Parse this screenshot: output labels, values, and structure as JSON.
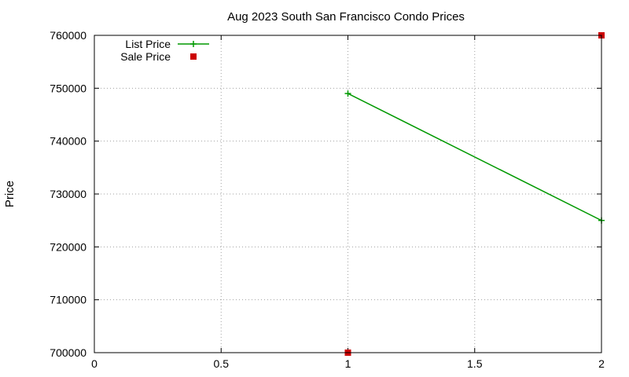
{
  "chart_data": {
    "type": "line",
    "title": "Aug 2023 South San Francisco Condo Prices",
    "xlabel": "",
    "ylabel": "Price",
    "xlim": [
      0,
      2
    ],
    "ylim": [
      700000,
      760000
    ],
    "x_ticks": [
      {
        "value": 0,
        "label": "0"
      },
      {
        "value": 0.5,
        "label": "0.5"
      },
      {
        "value": 1,
        "label": "1"
      },
      {
        "value": 1.5,
        "label": "1.5"
      },
      {
        "value": 2,
        "label": "2"
      }
    ],
    "y_ticks": [
      {
        "value": 700000,
        "label": "700000"
      },
      {
        "value": 710000,
        "label": "710000"
      },
      {
        "value": 720000,
        "label": "720000"
      },
      {
        "value": 730000,
        "label": "730000"
      },
      {
        "value": 740000,
        "label": "740000"
      },
      {
        "value": 750000,
        "label": "750000"
      },
      {
        "value": 760000,
        "label": "760000"
      }
    ],
    "grid": true,
    "legend_position": "top-left",
    "series": [
      {
        "name": "List Price",
        "style": "linespoints",
        "marker": "plus",
        "color": "#009900",
        "points": [
          {
            "x": 1,
            "y": 749000
          },
          {
            "x": 2,
            "y": 725000
          }
        ]
      },
      {
        "name": "Sale Price",
        "style": "points",
        "marker": "square",
        "color": "#cc0000",
        "points": [
          {
            "x": 1,
            "y": 700000
          },
          {
            "x": 2,
            "y": 760000
          }
        ]
      }
    ]
  }
}
